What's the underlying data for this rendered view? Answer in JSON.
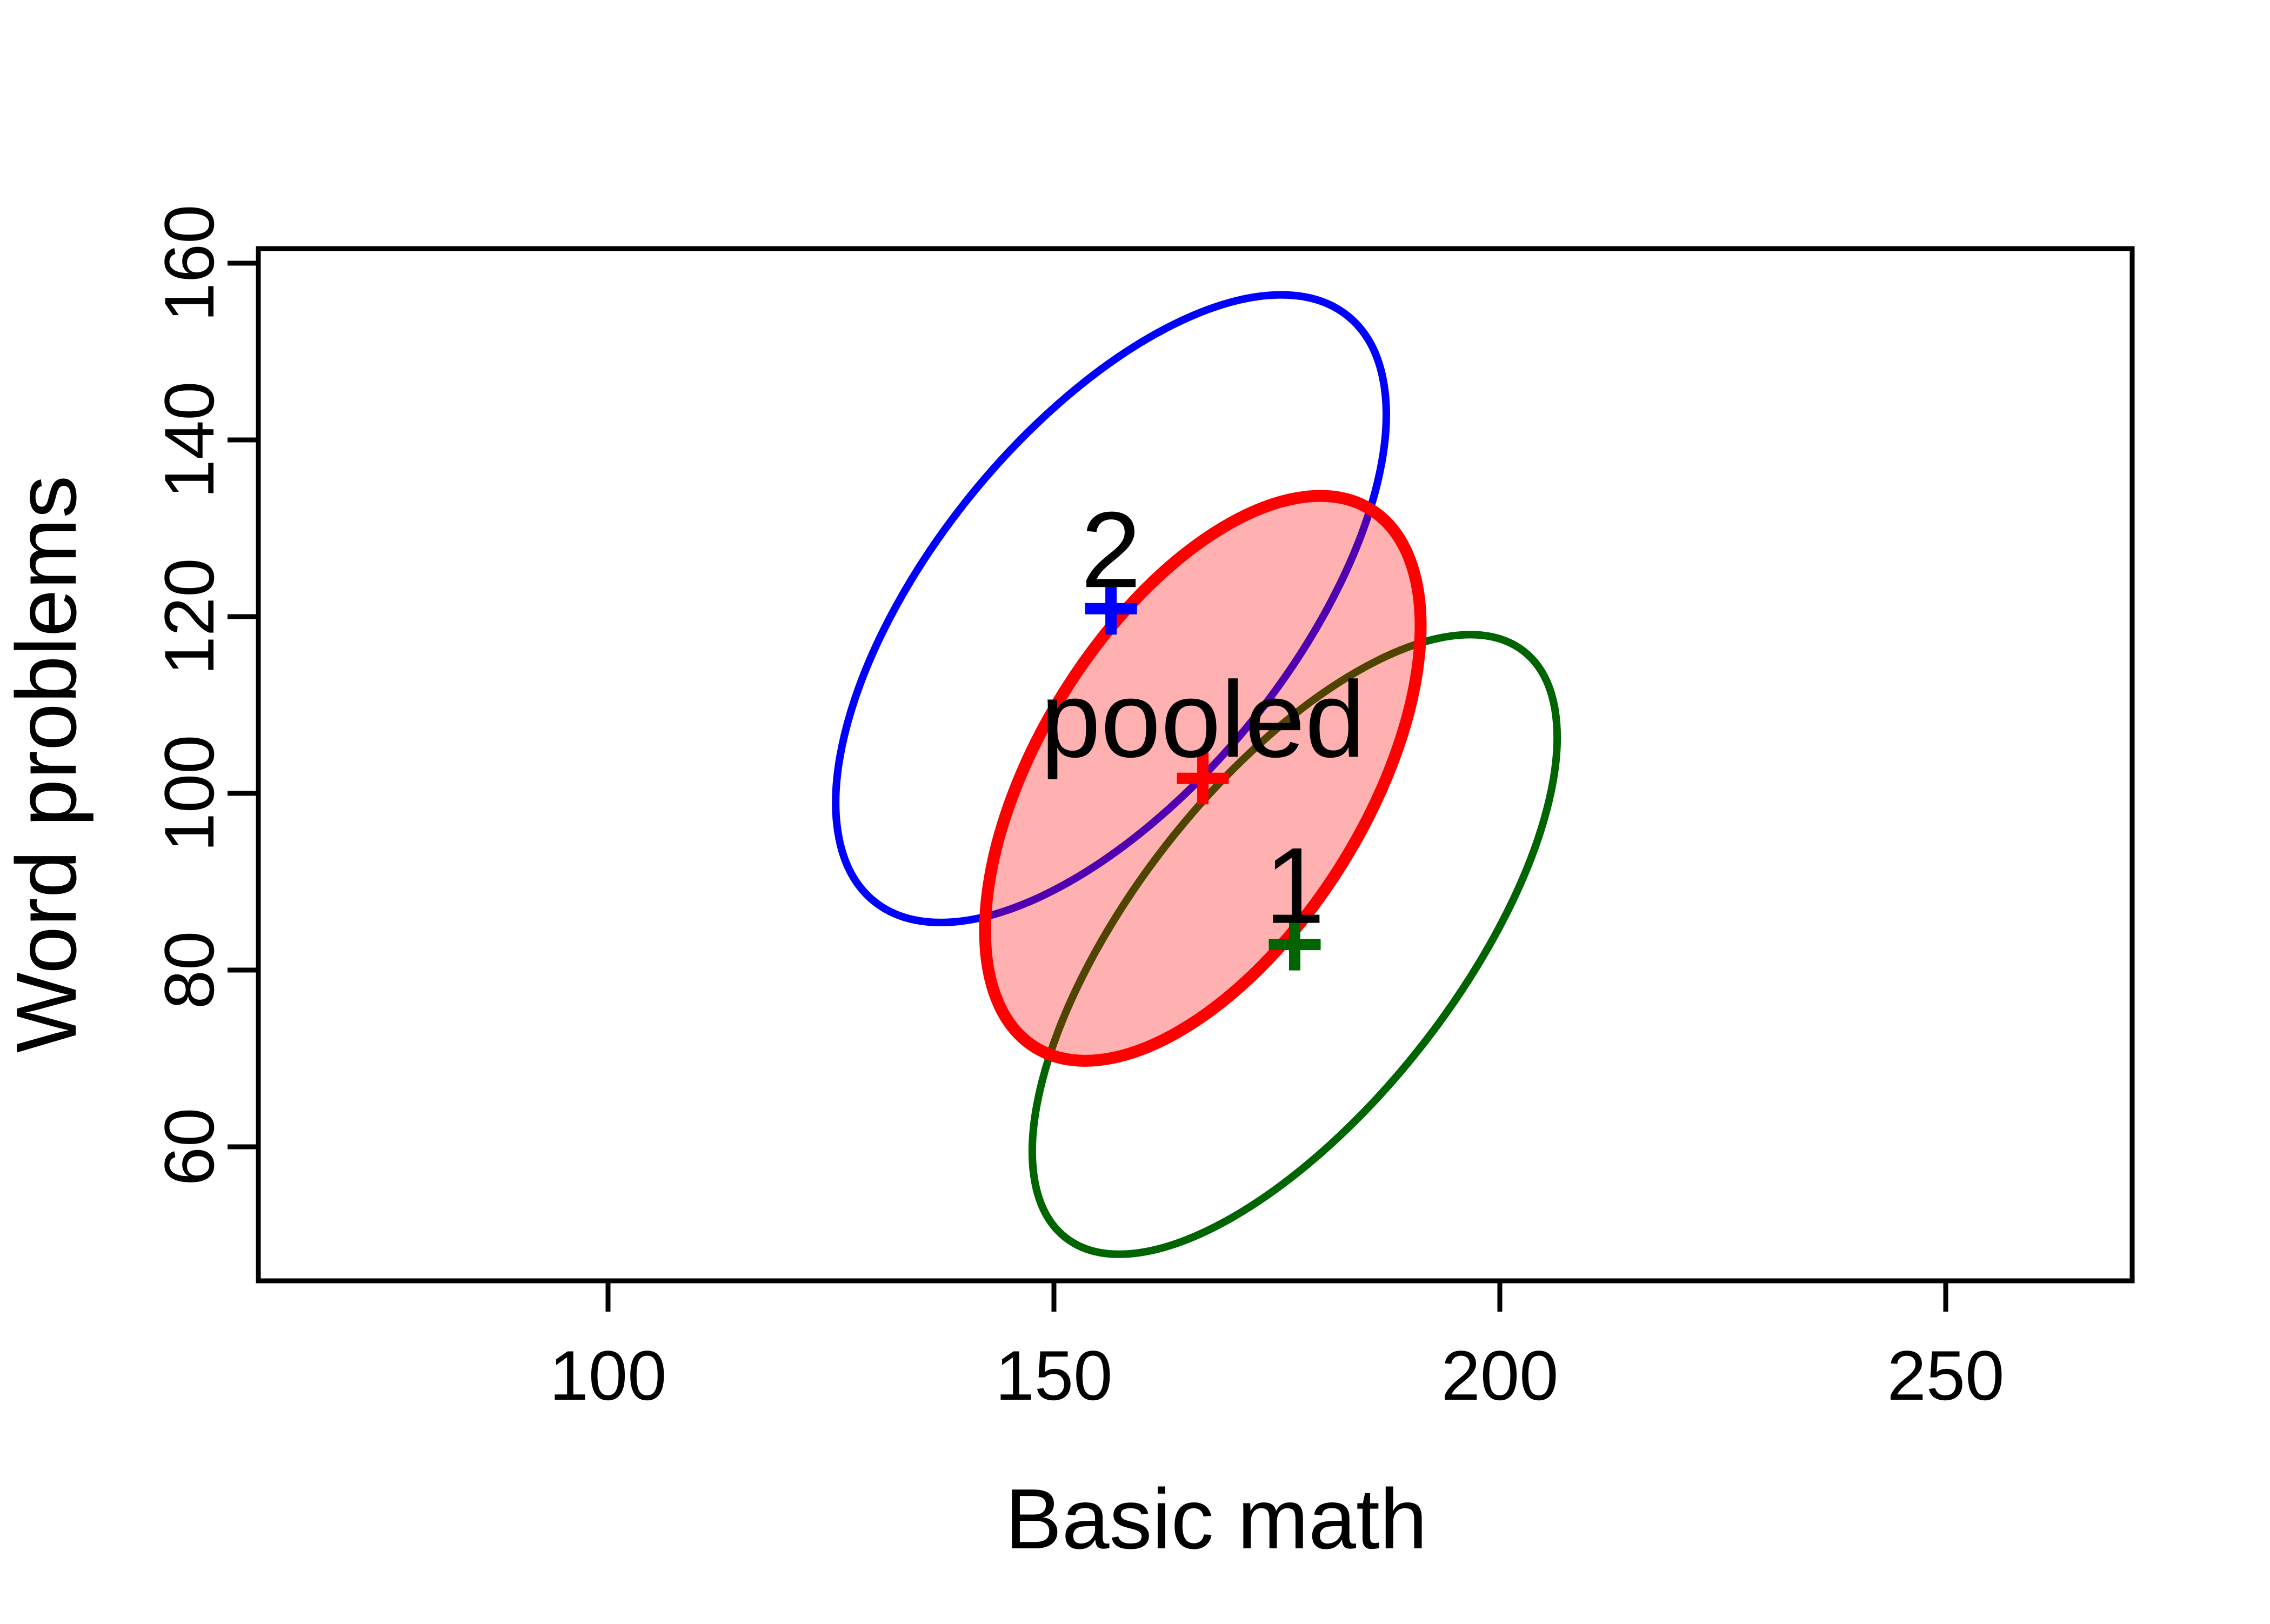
{
  "figure": {
    "background": "#ffffff",
    "border_color": "#000000"
  },
  "axes": {
    "x": {
      "title": "Basic math",
      "tick_labels": [
        "100",
        "150",
        "200",
        "250"
      ],
      "tick_values": [
        100,
        150,
        200,
        250
      ]
    },
    "y": {
      "title": "Word problems",
      "tick_labels": [
        "60",
        "80",
        "100",
        "120",
        "140",
        "160"
      ],
      "tick_values": [
        60,
        80,
        100,
        120,
        140,
        160
      ]
    }
  },
  "chart_data": {
    "type": "scatter",
    "subtype": "covariance-ellipses",
    "title": "",
    "xlabel": "Basic math",
    "ylabel": "Word problems",
    "xlim": [
      61,
      271
    ],
    "ylim": [
      45,
      162
    ],
    "x_ticks": [
      100,
      150,
      200,
      250
    ],
    "y_ticks": [
      60,
      80,
      100,
      120,
      140,
      160
    ],
    "grid": false,
    "legend_position": "none",
    "mean_marker": "+",
    "groups": [
      {
        "label": "2",
        "color": "#0000FF",
        "mean": {
          "x": 156.4,
          "y": 120.9
        },
        "ellipse": {
          "semi_major": 42.4,
          "semi_minor": 20.3,
          "angle_deg": 51
        },
        "filled": false,
        "stroke_px": 14
      },
      {
        "label": "1",
        "color": "#006400",
        "mean": {
          "x": 177.0,
          "y": 82.9
        },
        "ellipse": {
          "semi_major": 41.9,
          "semi_minor": 18.3,
          "angle_deg": 52
        },
        "filled": false,
        "stroke_px": 14
      },
      {
        "label": "pooled",
        "color": "#FF0000",
        "mean": {
          "x": 166.7,
          "y": 101.7
        },
        "ellipse": {
          "semi_major": 35.7,
          "semi_minor": 18.4,
          "angle_deg": 58
        },
        "filled": true,
        "fill_color": "#FF0000",
        "fill_opacity": 0.31,
        "stroke_px": 22
      }
    ]
  }
}
